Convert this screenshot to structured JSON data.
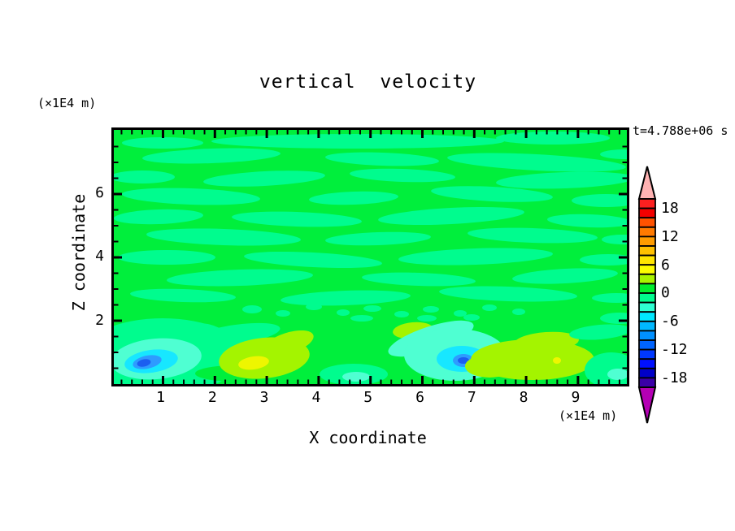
{
  "title": "vertical  velocity",
  "annotations": {
    "time": "t=4.788e+06 s"
  },
  "x_axis": {
    "label": "X coordinate",
    "unit": "(×1E4 m)",
    "tick_labels": [
      "1",
      "2",
      "3",
      "4",
      "5",
      "6",
      "7",
      "8",
      "9"
    ],
    "major_tick_values": [
      1,
      2,
      3,
      4,
      5,
      6,
      7,
      8,
      9
    ],
    "minor_step": 0.2,
    "range": [
      0,
      10
    ]
  },
  "y_axis": {
    "label": "Z coordinate",
    "unit": "(×1E4 m)",
    "tick_labels": [
      "6",
      "4",
      "2"
    ],
    "major_tick_values": [
      6,
      4,
      2
    ],
    "minor_step": 0.5,
    "range": [
      0,
      8.1
    ]
  },
  "colorbar": {
    "labels": [
      "18",
      "12",
      "6",
      "0",
      "-6",
      "-12",
      "-18"
    ],
    "segment_values_top_to_bottom": [
      20,
      18,
      16,
      14,
      12,
      10,
      8,
      6,
      4,
      2,
      0,
      -2,
      -4,
      -6,
      -8,
      -10,
      -12,
      -14,
      -16,
      -18,
      -20
    ],
    "segments": [
      "#fc2020",
      "#f20000",
      "#ff5200",
      "#ff7a00",
      "#ff9c00",
      "#ffc000",
      "#ffe400",
      "#fcfc00",
      "#a8f400",
      "#00ee2e",
      "#00fc8e",
      "#2effd2",
      "#00e8ff",
      "#00b8ff",
      "#0090ff",
      "#0064ff",
      "#0038ff",
      "#0010ff",
      "#0000c8",
      "#3a00a8"
    ],
    "top_arrow_color": "#ffb2b2",
    "bottom_arrow_color": "#b400b4"
  },
  "chart_data": {
    "type": "contour",
    "title": "vertical velocity",
    "xlabel": "X coordinate",
    "ylabel": "Z coordinate",
    "x_units": "(×1E4 m)",
    "y_units": "(×1E4 m)",
    "time_annotation": "t=4.788e+06 s",
    "xlim": [
      0,
      10
    ],
    "ylim": [
      0,
      8.1
    ],
    "contour_interval": 2,
    "levels": [
      -20,
      -18,
      -16,
      -14,
      -12,
      -10,
      -8,
      -6,
      -4,
      -2,
      0,
      2,
      4,
      6,
      8,
      10,
      12,
      14,
      16,
      18,
      20
    ],
    "field_summary": "Mostly weak vertical velocity between -2 and +2 throughout the domain, shown as interleaved horizontal streaks of green (0 to 2) and spring green (-2 to 0); stronger cells confined below z=2.",
    "features": [
      {
        "type": "downdraft-core",
        "x": 0.85,
        "z": 0.85,
        "value_range": "-10 to -6"
      },
      {
        "type": "updraft-cell",
        "x": 2.8,
        "z": 0.8,
        "value_range": "2 to 6"
      },
      {
        "type": "downdraft-core",
        "x": 6.1,
        "z": 0.75,
        "value_range": "-10 to -6"
      },
      {
        "type": "updraft-cell",
        "x": 5.8,
        "z": 1.7,
        "value_range": "2 to 4"
      },
      {
        "type": "updraft-cell",
        "x": 8.1,
        "z": 0.8,
        "value_range": "2 to 6"
      },
      {
        "type": "turbulent-speckle-band",
        "x_range": [
          2.3,
          8.0
        ],
        "z_range": [
          2.0,
          2.7
        ],
        "value_range": "-2 to 2"
      }
    ]
  },
  "plot_field": {
    "background": "G",
    "palette": {
      "G": "#00ef3c",
      "S": "#00fc8e",
      "A": "#4fffd2",
      "C": "#17e7ff",
      "K": "#2e9bff",
      "B": "#1b5ef0",
      "Y": "#a4f400",
      "W": "#eef600"
    },
    "blobs": [
      [
        300,
        14,
        180,
        9,
        0,
        "S"
      ],
      [
        60,
        16,
        50,
        7,
        0,
        "S"
      ],
      [
        540,
        10,
        70,
        8,
        0,
        "S"
      ],
      [
        120,
        32,
        85,
        9,
        -2,
        "S"
      ],
      [
        330,
        36,
        70,
        8,
        2,
        "S"
      ],
      [
        520,
        40,
        110,
        10,
        3,
        "S"
      ],
      [
        628,
        30,
        30,
        6,
        0,
        "S"
      ],
      [
        35,
        58,
        40,
        8,
        0,
        "S"
      ],
      [
        185,
        60,
        75,
        9,
        -3,
        "S"
      ],
      [
        355,
        56,
        65,
        8,
        2,
        "S"
      ],
      [
        555,
        62,
        85,
        10,
        -2,
        "S"
      ],
      [
        95,
        82,
        85,
        10,
        2,
        "S"
      ],
      [
        295,
        84,
        55,
        8,
        -2,
        "S"
      ],
      [
        465,
        79,
        75,
        9,
        3,
        "S"
      ],
      [
        605,
        87,
        42,
        8,
        0,
        "S"
      ],
      [
        55,
        107,
        55,
        9,
        -2,
        "S"
      ],
      [
        225,
        110,
        80,
        9,
        2,
        "S"
      ],
      [
        415,
        106,
        90,
        10,
        -3,
        "S"
      ],
      [
        585,
        112,
        52,
        8,
        2,
        "S"
      ],
      [
        135,
        132,
        95,
        10,
        2,
        "S"
      ],
      [
        325,
        134,
        65,
        8,
        -2,
        "S"
      ],
      [
        515,
        130,
        80,
        9,
        2,
        "S"
      ],
      [
        625,
        135,
        25,
        6,
        0,
        "S"
      ],
      [
        65,
        157,
        60,
        9,
        0,
        "S"
      ],
      [
        245,
        160,
        85,
        9,
        3,
        "S"
      ],
      [
        445,
        156,
        95,
        10,
        -2,
        "S"
      ],
      [
        608,
        160,
        35,
        7,
        0,
        "S"
      ],
      [
        155,
        182,
        90,
        10,
        -2,
        "S"
      ],
      [
        375,
        184,
        70,
        8,
        2,
        "S"
      ],
      [
        555,
        180,
        65,
        9,
        -3,
        "S"
      ],
      [
        85,
        204,
        65,
        8,
        2,
        "S"
      ],
      [
        285,
        207,
        80,
        9,
        -2,
        "S"
      ],
      [
        485,
        202,
        85,
        9,
        2,
        "S"
      ],
      [
        618,
        207,
        30,
        6,
        0,
        "S"
      ],
      [
        170,
        221,
        12,
        5,
        0,
        "S"
      ],
      [
        208,
        226,
        9,
        4,
        0,
        "S"
      ],
      [
        246,
        218,
        10,
        4,
        0,
        "S"
      ],
      [
        282,
        225,
        8,
        4,
        0,
        "S"
      ],
      [
        318,
        220,
        11,
        4,
        0,
        "S"
      ],
      [
        354,
        227,
        9,
        4,
        0,
        "S"
      ],
      [
        390,
        221,
        10,
        4,
        0,
        "S"
      ],
      [
        426,
        226,
        8,
        4,
        0,
        "S"
      ],
      [
        462,
        219,
        9,
        4,
        0,
        "S"
      ],
      [
        498,
        224,
        8,
        4,
        0,
        "S"
      ],
      [
        305,
        232,
        14,
        4,
        0,
        "S"
      ],
      [
        385,
        232,
        12,
        4,
        0,
        "S"
      ],
      [
        440,
        231,
        10,
        4,
        0,
        "S"
      ],
      [
        60,
        278,
        100,
        46,
        0,
        "S"
      ],
      [
        150,
        252,
        55,
        12,
        -8,
        "S"
      ],
      [
        122,
        258,
        32,
        16,
        25,
        "S"
      ],
      [
        150,
        300,
        50,
        10,
        0,
        "G"
      ],
      [
        52,
        282,
        56,
        25,
        -5,
        "A"
      ],
      [
        46,
        285,
        33,
        14,
        -8,
        "C"
      ],
      [
        41,
        286,
        18,
        8,
        -12,
        "K"
      ],
      [
        37,
        287,
        8.5,
        4.5,
        -12,
        "B"
      ],
      [
        295,
        301,
        42,
        13,
        0,
        "S"
      ],
      [
        298,
        304,
        17,
        6,
        0,
        "A"
      ],
      [
        185,
        281,
        56,
        25,
        -6,
        "Y"
      ],
      [
        214,
        263,
        33,
        13,
        -18,
        "Y"
      ],
      [
        172,
        287,
        19,
        8,
        -8,
        "W"
      ],
      [
        368,
        247,
        25,
        10,
        -5,
        "Y"
      ],
      [
        390,
        257,
        55,
        15,
        -18,
        "A"
      ],
      [
        420,
        277,
        63,
        32,
        0,
        "A"
      ],
      [
        428,
        282,
        31,
        16,
        0,
        "C"
      ],
      [
        430,
        284,
        13,
        8,
        0,
        "K"
      ],
      [
        430,
        284,
        7,
        4,
        0,
        "B"
      ],
      [
        515,
        283,
        76,
        25,
        0,
        "Y"
      ],
      [
        532,
        261,
        40,
        12,
        -4,
        "Y"
      ],
      [
        462,
        291,
        30,
        14,
        0,
        "Y"
      ],
      [
        545,
        284,
        5,
        4,
        0,
        "W"
      ],
      [
        612,
        296,
        33,
        22,
        0,
        "S"
      ],
      [
        620,
        301,
        13,
        7,
        0,
        "A"
      ],
      [
        598,
        249,
        38,
        9,
        -5,
        "S"
      ],
      [
        622,
        232,
        24,
        7,
        0,
        "S"
      ]
    ]
  }
}
